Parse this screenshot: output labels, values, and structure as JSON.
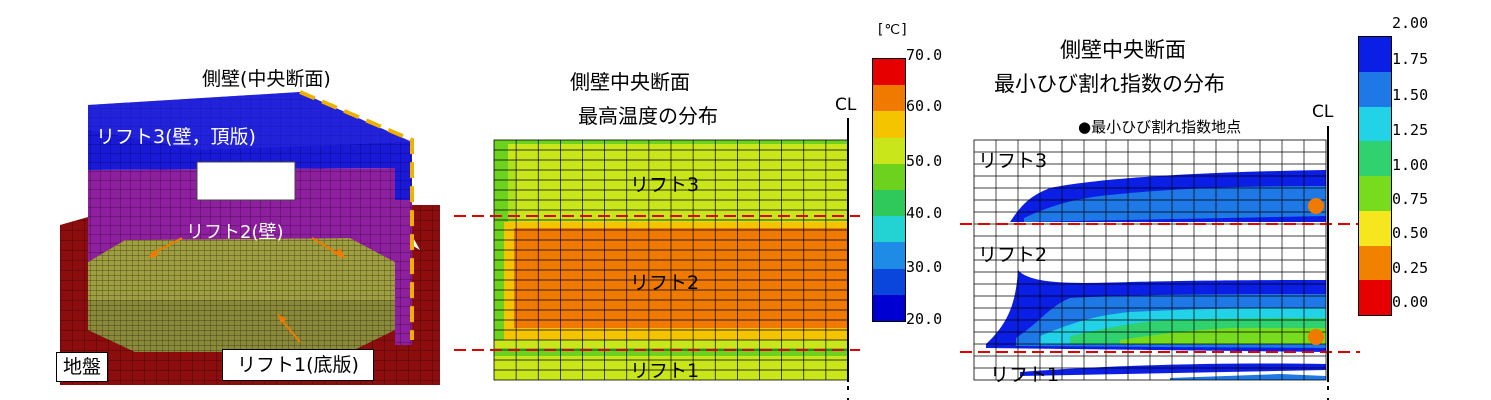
{
  "model": {
    "side_wall_label": "側壁(中央断面)",
    "lift3_label": "リフト3(壁，頂版)",
    "lift2_label": "リフト2(壁)",
    "lift1_label": "リフト1(底版)",
    "ground_label": "地盤"
  },
  "temperature_panel": {
    "title_line1": "側壁中央断面",
    "title_line2": "最高温度の分布",
    "cl_label": "CL",
    "zone_labels": [
      "リフト3",
      "リフト2",
      "リフト1"
    ],
    "colorbar": {
      "unit": "[℃]",
      "ticks": [
        "70.0",
        "60.0",
        "50.0",
        "40.0",
        "30.0",
        "20.0"
      ],
      "colors": [
        "#e60000",
        "#f07a00",
        "#f5c400",
        "#c8e619",
        "#6cd21e",
        "#2fc85a",
        "#23d2d2",
        "#1e8ce6",
        "#0a46dc",
        "#0000d2"
      ]
    }
  },
  "crack_panel": {
    "title_line1": "側壁中央断面",
    "title_line2": "最小ひび割れ指数の分布",
    "legend_marker": "●最小ひび割れ指数地点",
    "cl_label": "CL",
    "zone_labels": [
      "リフト3",
      "リフト2",
      "リフト1"
    ],
    "colorbar": {
      "ticks": [
        "2.00",
        "1.75",
        "1.50",
        "1.25",
        "1.00",
        "0.75",
        "0.50",
        "0.25",
        "0.00"
      ],
      "colors": [
        "#0a1ee6",
        "#1e78e6",
        "#22d2e6",
        "#2fd26e",
        "#78dc1e",
        "#f5e61e",
        "#f08200",
        "#e60000"
      ]
    }
  }
}
